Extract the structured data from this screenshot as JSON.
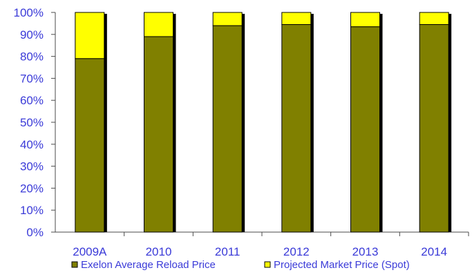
{
  "chart_data": {
    "type": "bar",
    "stacked": true,
    "percent_stacked": true,
    "categories": [
      "2009A",
      "2010",
      "2011",
      "2012",
      "2013",
      "2014"
    ],
    "series": [
      {
        "name": "Exelon Average Reload Price",
        "values": [
          79,
          89,
          94,
          94.5,
          93.5,
          94.5
        ],
        "color": "#808000"
      },
      {
        "name": "Projected Market Price (Spot)",
        "values": [
          21,
          11,
          6,
          5.5,
          6.5,
          5.5
        ],
        "color": "#ffff00"
      }
    ],
    "yticks": [
      "0%",
      "10%",
      "20%",
      "30%",
      "40%",
      "50%",
      "60%",
      "70%",
      "80%",
      "90%",
      "100%"
    ],
    "ylim": [
      0,
      100
    ],
    "grid": false,
    "legend_position": "bottom",
    "bar_outline_color": "#000000",
    "text_color": "#3a3ad8"
  }
}
